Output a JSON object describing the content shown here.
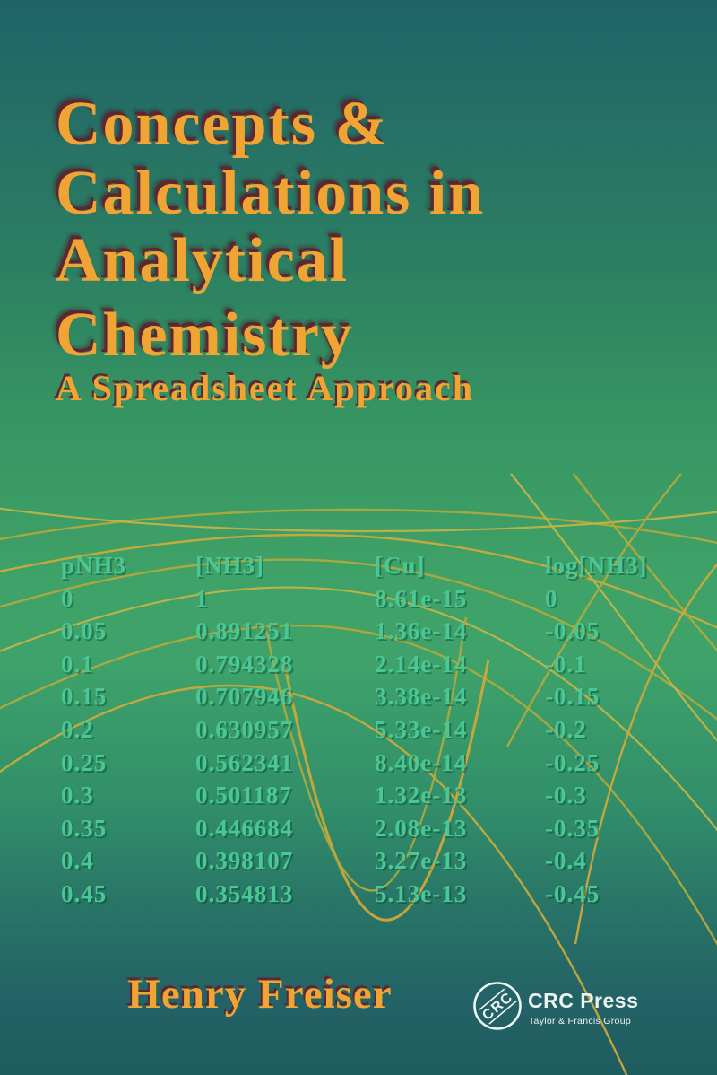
{
  "cover": {
    "title_lines": [
      "Concepts &",
      "Calculations in",
      "Analytical",
      "Chemistry"
    ],
    "subtitle": "A Spreadsheet Approach",
    "author": "Henry Freiser"
  },
  "publisher": {
    "badge_text": "CRC",
    "name": "CRC Press",
    "tagline": "Taylor & Francis Group"
  },
  "spreadsheet": {
    "headers": [
      "pNH3",
      "[NH3]",
      "[Cu]",
      "log[NH3]"
    ],
    "rows": [
      [
        "0",
        "1",
        "8.61e-15",
        "0"
      ],
      [
        "0.05",
        "0.891251",
        "1.36e-14",
        "-0.05"
      ],
      [
        "0.1",
        "0.794328",
        "2.14e-14",
        "-0.1"
      ],
      [
        "0.15",
        "0.707946",
        "3.38e-14",
        "-0.15"
      ],
      [
        "0.2",
        "0.630957",
        "5.33e-14",
        "-0.2"
      ],
      [
        "0.25",
        "0.562341",
        "8.40e-14",
        "-0.25"
      ],
      [
        "0.3",
        "0.501187",
        "1.32e-13",
        "-0.3"
      ],
      [
        "0.35",
        "0.446684",
        "2.08e-13",
        "-0.35"
      ],
      [
        "0.4",
        "0.398107",
        "3.27e-13",
        "-0.4"
      ],
      [
        "0.45",
        "0.354813",
        "5.13e-13",
        "-0.45"
      ]
    ]
  },
  "colors": {
    "title_orange": "#F0A433",
    "title_shadow": "#5E2630",
    "table_text": "#49C795",
    "curve_yellow": "#C4B244",
    "bg_top": "#1F6369",
    "bg_mid": "#3FA268",
    "bg_bottom": "#1F5C60",
    "logo_white": "#EDF4F2"
  }
}
